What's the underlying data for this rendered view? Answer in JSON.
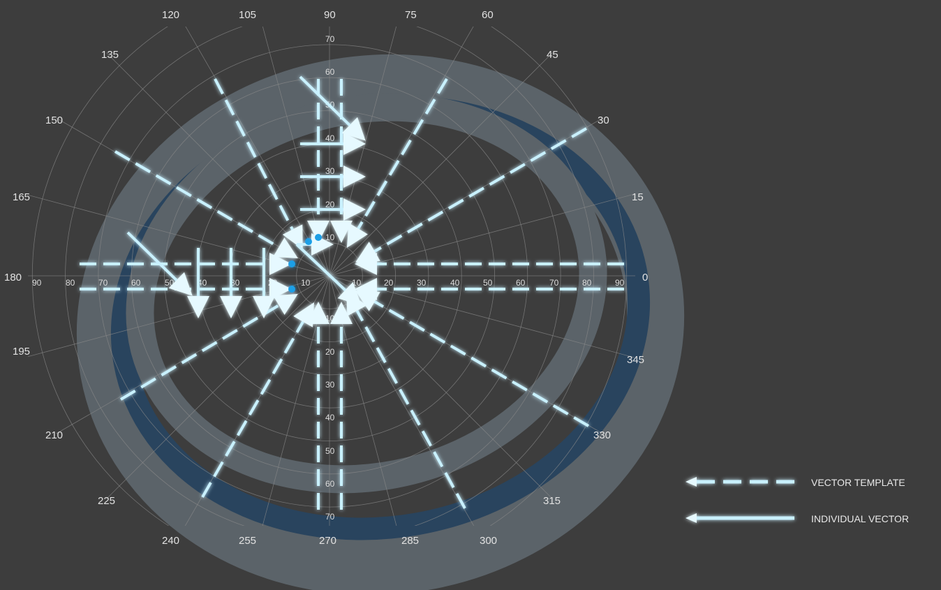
{
  "colors": {
    "background": "#3d3d3d",
    "grid": "#8a8a8a",
    "band_outer": "#5b6369",
    "band_inner": "#29445e",
    "vector": "#c9f1ff",
    "vector_glow": "#1fb6ff",
    "label": "#e2e2e2"
  },
  "perimeter_labels": [
    "0",
    "15",
    "30",
    "45",
    "60",
    "75",
    "90",
    "105",
    "120",
    "135",
    "150",
    "165",
    "180",
    "195",
    "210",
    "225",
    "240",
    "255",
    "270",
    "285",
    "300",
    "315",
    "330",
    "345"
  ],
  "axis_ticks": {
    "right": [
      "10",
      "20",
      "30",
      "40",
      "50",
      "60",
      "70",
      "80",
      "90"
    ],
    "left": [
      "90",
      "80",
      "70",
      "60",
      "50",
      "40",
      "30",
      "20",
      "10"
    ],
    "up": [
      "10",
      "20",
      "30",
      "40",
      "50",
      "60",
      "70"
    ],
    "down": [
      "10",
      "20",
      "30",
      "40",
      "50",
      "60",
      "70"
    ]
  },
  "legend": [
    {
      "label": "VECTOR TEMPLATE",
      "style": "dashed"
    },
    {
      "label": "INDIVIDUAL VECTOR",
      "style": "solid"
    }
  ]
}
